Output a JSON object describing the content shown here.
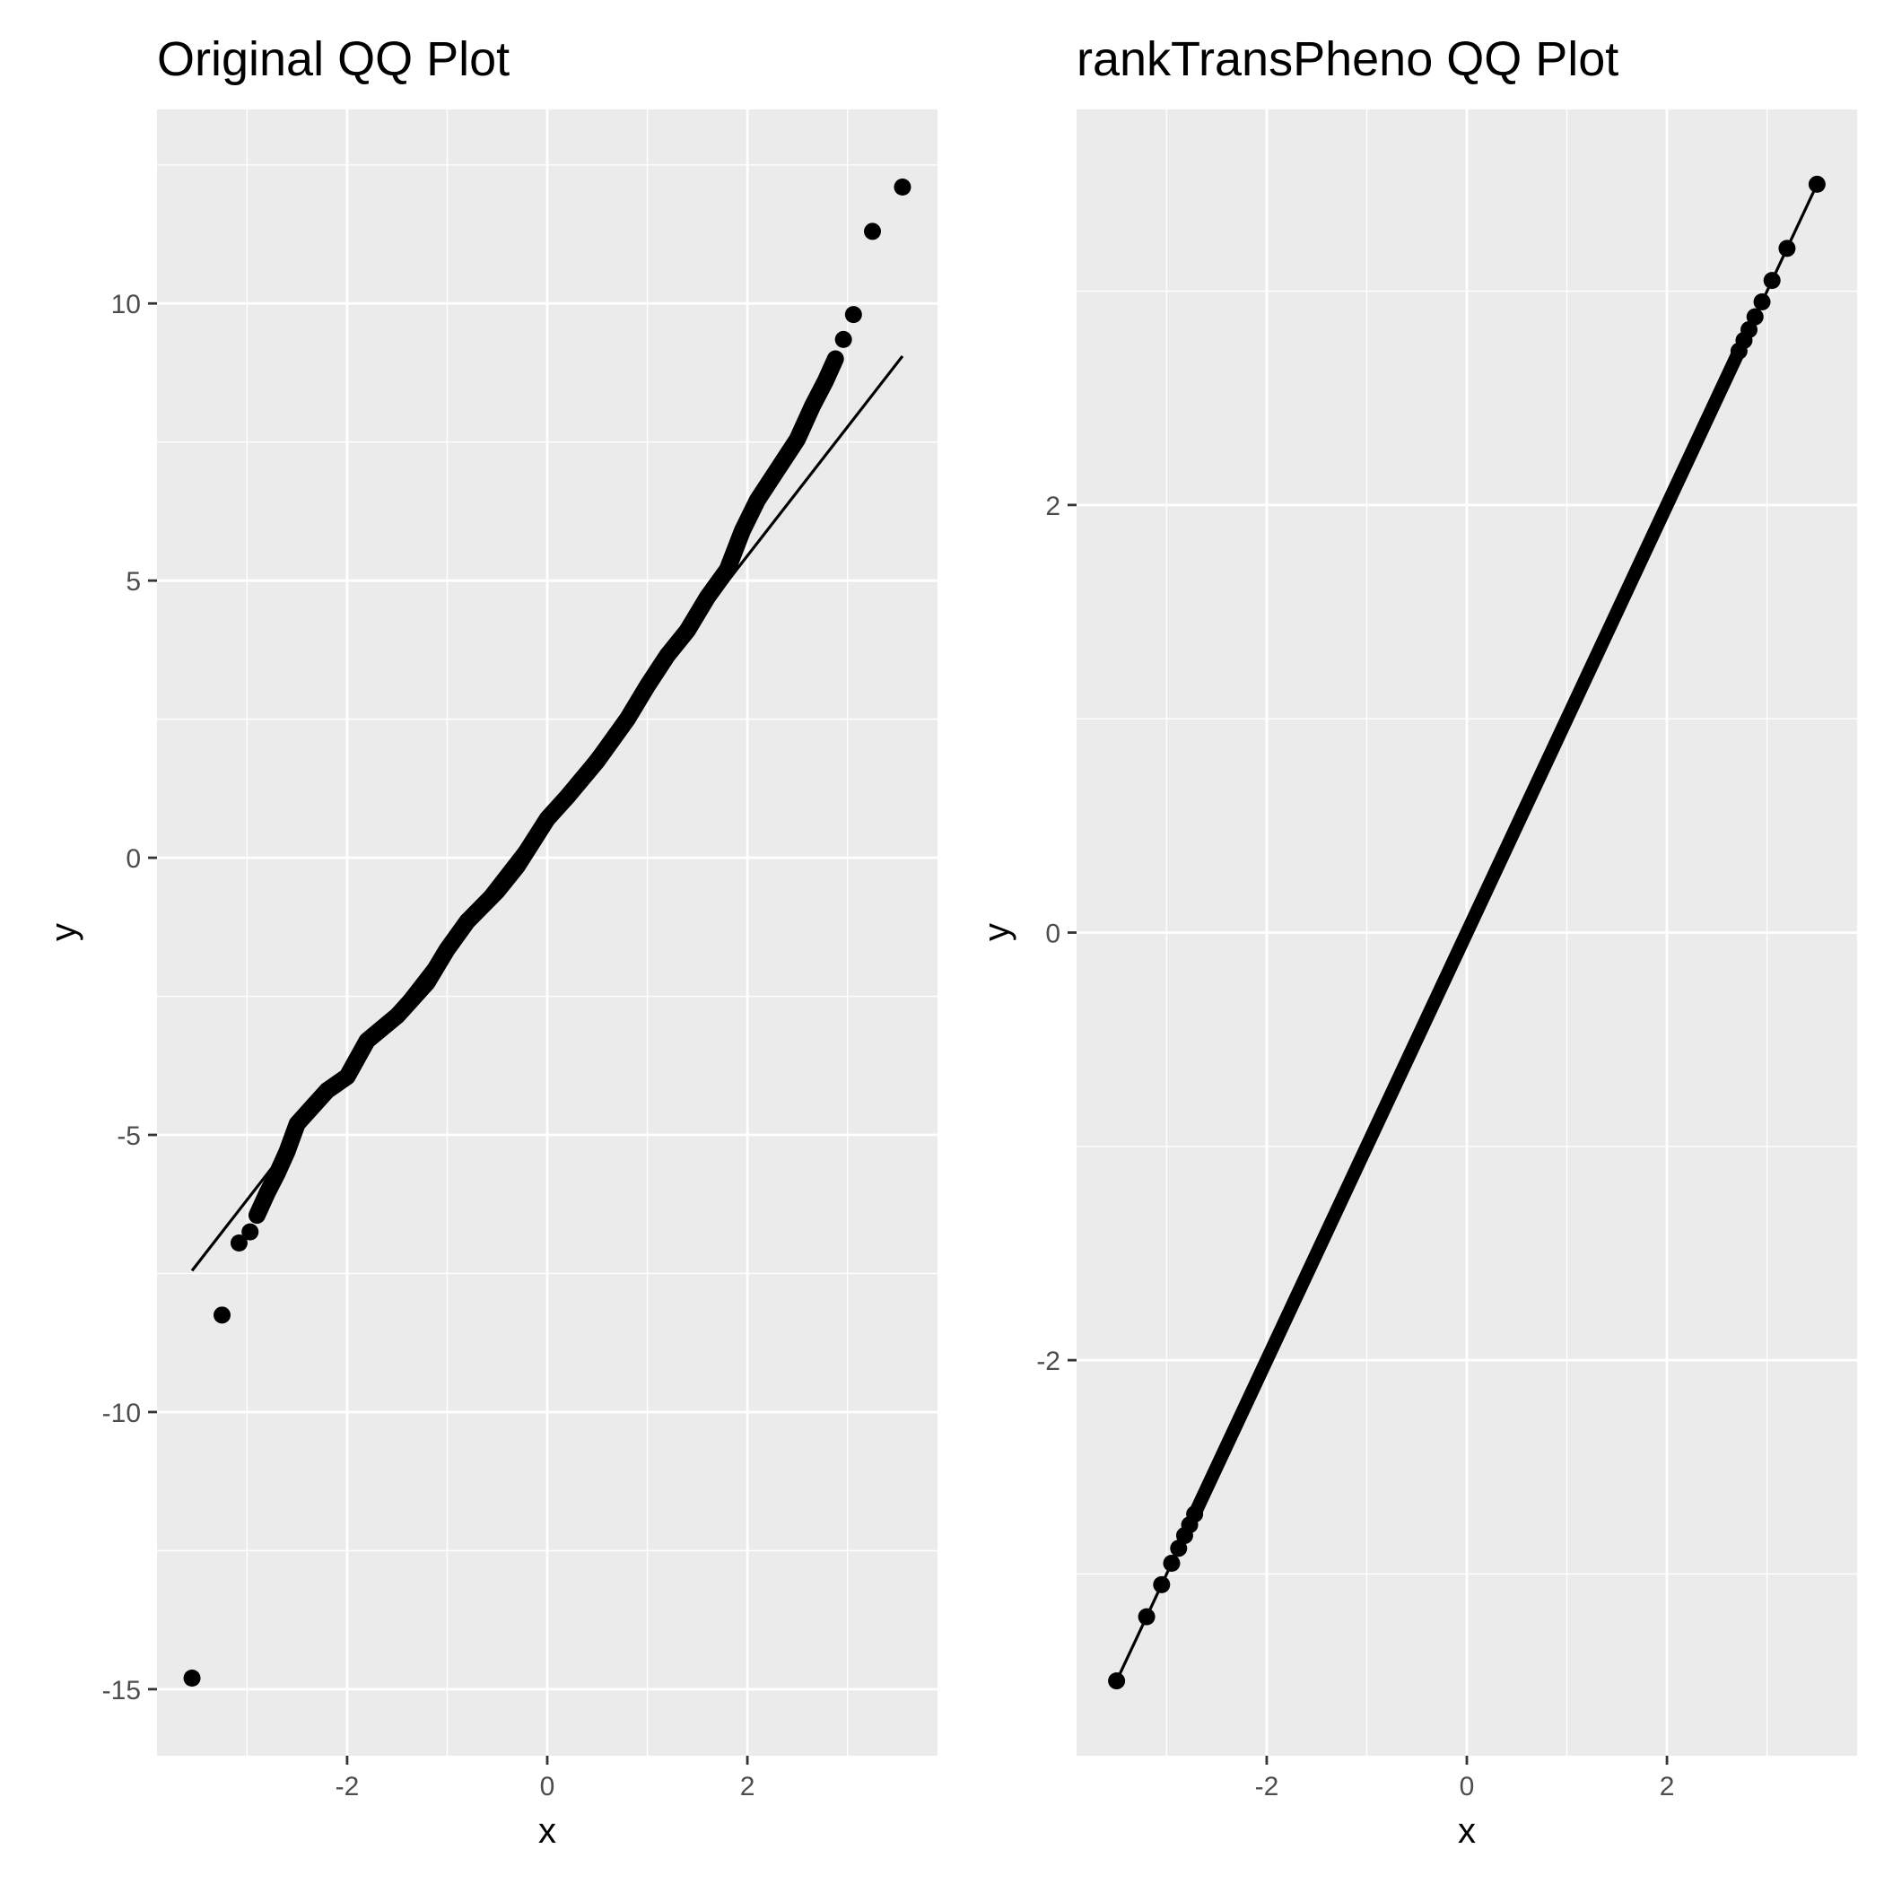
{
  "chart_data": [
    {
      "type": "scatter",
      "title": "Original QQ Plot",
      "xlabel": "x",
      "ylabel": "y",
      "xlim": [
        -3.9,
        3.9
      ],
      "ylim": [
        -16.2,
        13.5
      ],
      "xticks": [
        -2,
        0,
        2
      ],
      "xtick_labels": [
        "-2",
        "0",
        "2"
      ],
      "yticks": [
        -15,
        -10,
        -5,
        0,
        5,
        10
      ],
      "ytick_labels": [
        "-15",
        "-10",
        "-5",
        "0",
        "5",
        "10"
      ],
      "grid": true,
      "legend": "none",
      "reference_line": {
        "x": [
          -3.55,
          3.55
        ],
        "y": [
          -7.45,
          9.05
        ]
      },
      "tail_points": [
        {
          "x": -3.55,
          "y": -14.8
        },
        {
          "x": -3.25,
          "y": -8.25
        },
        {
          "x": -3.08,
          "y": -6.95
        },
        {
          "x": -2.97,
          "y": -6.75
        },
        {
          "x": 2.96,
          "y": 9.35
        },
        {
          "x": 3.06,
          "y": 9.8
        },
        {
          "x": 3.25,
          "y": 11.3
        },
        {
          "x": 3.55,
          "y": 12.1
        }
      ],
      "curve": [
        {
          "x": -2.9,
          "y": -6.45
        },
        {
          "x": -2.8,
          "y": -6.05
        },
        {
          "x": -2.7,
          "y": -5.7
        },
        {
          "x": -2.6,
          "y": -5.3
        },
        {
          "x": -2.5,
          "y": -4.8
        },
        {
          "x": -2.35,
          "y": -4.5
        },
        {
          "x": -2.2,
          "y": -4.2
        },
        {
          "x": -2.0,
          "y": -3.95
        },
        {
          "x": -1.8,
          "y": -3.3
        },
        {
          "x": -1.5,
          "y": -2.85
        },
        {
          "x": -1.2,
          "y": -2.25
        },
        {
          "x": -1.0,
          "y": -1.65
        },
        {
          "x": -0.8,
          "y": -1.15
        },
        {
          "x": -0.5,
          "y": -0.6
        },
        {
          "x": -0.3,
          "y": -0.15
        },
        {
          "x": 0.0,
          "y": 0.7
        },
        {
          "x": 0.2,
          "y": 1.1
        },
        {
          "x": 0.5,
          "y": 1.75
        },
        {
          "x": 0.8,
          "y": 2.5
        },
        {
          "x": 1.0,
          "y": 3.1
        },
        {
          "x": 1.2,
          "y": 3.65
        },
        {
          "x": 1.4,
          "y": 4.1
        },
        {
          "x": 1.6,
          "y": 4.7
        },
        {
          "x": 1.8,
          "y": 5.2
        },
        {
          "x": 1.95,
          "y": 5.9
        },
        {
          "x": 2.1,
          "y": 6.45
        },
        {
          "x": 2.3,
          "y": 7.0
        },
        {
          "x": 2.5,
          "y": 7.55
        },
        {
          "x": 2.65,
          "y": 8.15
        },
        {
          "x": 2.78,
          "y": 8.6
        },
        {
          "x": 2.88,
          "y": 9.0
        }
      ]
    },
    {
      "type": "scatter",
      "title": "rankTransPheno QQ Plot",
      "xlabel": "x",
      "ylabel": "y",
      "xlim": [
        -3.9,
        3.9
      ],
      "ylim": [
        -3.85,
        3.85
      ],
      "xticks": [
        -2,
        0,
        2
      ],
      "xtick_labels": [
        "-2",
        "0",
        "2"
      ],
      "yticks": [
        -2,
        0,
        2
      ],
      "ytick_labels": [
        "-2",
        "0",
        "2"
      ],
      "grid": true,
      "legend": "none",
      "reference_line": {
        "x": [
          -3.5,
          3.5
        ],
        "y": [
          -3.5,
          3.5
        ]
      },
      "tail_points": [
        {
          "x": -3.5,
          "y": -3.5
        },
        {
          "x": -3.2,
          "y": -3.2
        },
        {
          "x": -3.05,
          "y": -3.05
        },
        {
          "x": -2.95,
          "y": -2.95
        },
        {
          "x": -2.88,
          "y": -2.88
        },
        {
          "x": -2.82,
          "y": -2.82
        },
        {
          "x": -2.77,
          "y": -2.77
        },
        {
          "x": -2.72,
          "y": -2.72
        },
        {
          "x": 2.72,
          "y": 2.72
        },
        {
          "x": 2.77,
          "y": 2.77
        },
        {
          "x": 2.82,
          "y": 2.82
        },
        {
          "x": 2.88,
          "y": 2.88
        },
        {
          "x": 2.95,
          "y": 2.95
        },
        {
          "x": 3.05,
          "y": 3.05
        },
        {
          "x": 3.2,
          "y": 3.2
        },
        {
          "x": 3.5,
          "y": 3.5
        }
      ],
      "curve": [
        {
          "x": -2.7,
          "y": -2.7
        },
        {
          "x": 2.7,
          "y": 2.7
        }
      ]
    }
  ]
}
